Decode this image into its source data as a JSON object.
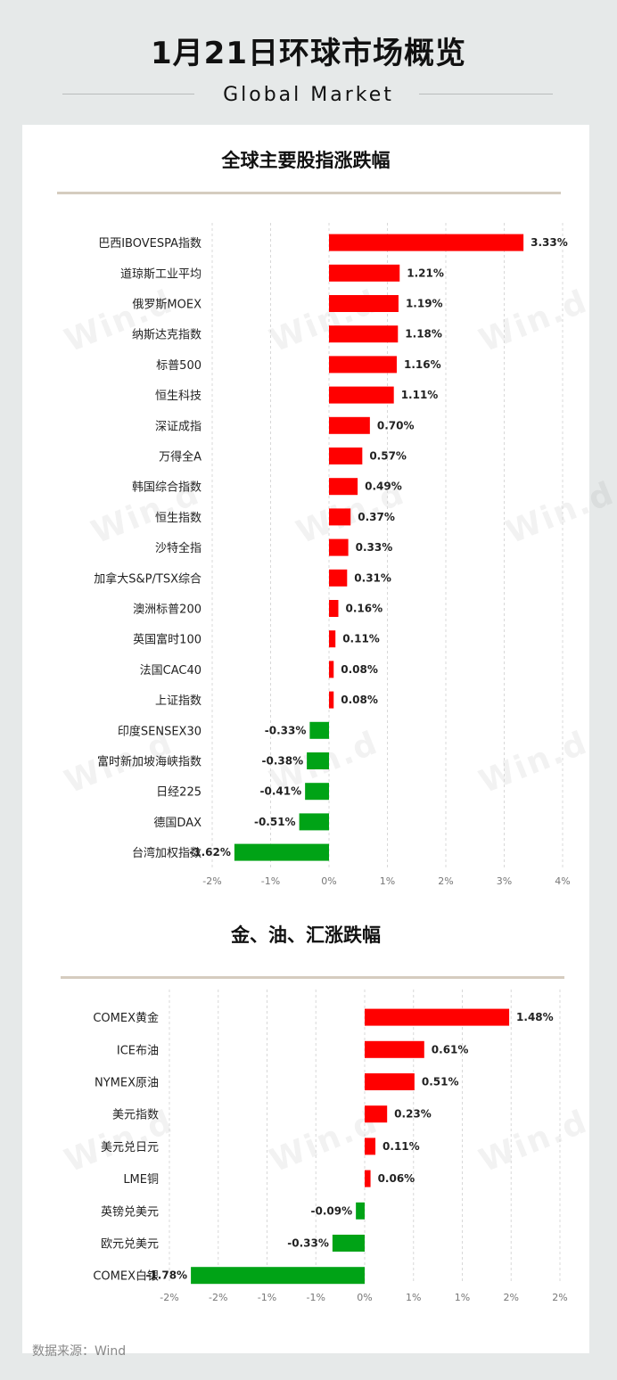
{
  "header": {
    "title": "1月21日环球市场概览",
    "subtitle": "Global Market"
  },
  "watermark": "Win.d",
  "source": "数据来源：Wind",
  "colors": {
    "up": "#ff0000",
    "down": "#00a316",
    "background": "#e6e9e9",
    "panel": "#ffffff",
    "rule": "#d5ccbf"
  },
  "chart_data": [
    {
      "type": "bar",
      "orientation": "horizontal",
      "title": "全球主要股指涨跌幅",
      "categories": [
        "巴西IBOVESPA指数",
        "道琼斯工业平均",
        "俄罗斯MOEX",
        "纳斯达克指数",
        "标普500",
        "恒生科技",
        "深证成指",
        "万得全A",
        "韩国综合指数",
        "恒生指数",
        "沙特全指",
        "加拿大S&P/TSX综合",
        "澳洲标普200",
        "英国富时100",
        "法国CAC40",
        "上证指数",
        "印度SENSEX30",
        "富时新加坡海峡指数",
        "日经225",
        "德国DAX",
        "台湾加权指数"
      ],
      "values": [
        3.33,
        1.21,
        1.19,
        1.18,
        1.16,
        1.11,
        0.7,
        0.57,
        0.49,
        0.37,
        0.33,
        0.31,
        0.16,
        0.11,
        0.08,
        0.08,
        -0.33,
        -0.38,
        -0.41,
        -0.51,
        -1.62
      ],
      "labels": [
        "3.33%",
        "1.21%",
        "1.19%",
        "1.18%",
        "1.16%",
        "1.11%",
        "0.70%",
        "0.57%",
        "0.49%",
        "0.37%",
        "0.33%",
        "0.31%",
        "0.16%",
        "0.11%",
        "0.08%",
        "0.08%",
        "-0.33%",
        "-0.38%",
        "-0.41%",
        "-0.51%",
        "-1.62%"
      ],
      "xlim": [
        -2,
        4
      ],
      "xticks": [
        -2,
        -1,
        0,
        1,
        2,
        3,
        4
      ],
      "xtick_labels": [
        "-2%",
        "-1%",
        "0%",
        "1%",
        "2%",
        "3%",
        "4%"
      ],
      "grid": true
    },
    {
      "type": "bar",
      "orientation": "horizontal",
      "title": "金、油、汇涨跌幅",
      "categories": [
        "COMEX黄金",
        "ICE布油",
        "NYMEX原油",
        "美元指数",
        "美元兑日元",
        "LME铜",
        "英镑兑美元",
        "欧元兑美元",
        "COMEX白银"
      ],
      "values": [
        1.48,
        0.61,
        0.51,
        0.23,
        0.11,
        0.06,
        -0.09,
        -0.33,
        -1.78
      ],
      "labels": [
        "1.48%",
        "0.61%",
        "0.51%",
        "0.23%",
        "0.11%",
        "0.06%",
        "-0.09%",
        "-0.33%",
        "-1.78%"
      ],
      "xlim": [
        -2,
        2
      ],
      "xticks": [
        -2,
        -1.5,
        -1,
        -0.5,
        0,
        0.5,
        1,
        1.5,
        2
      ],
      "xtick_labels": [
        "-2%",
        "-2%",
        "-1%",
        "-1%",
        "0%",
        "1%",
        "1%",
        "2%",
        "2%"
      ],
      "grid": true
    }
  ]
}
